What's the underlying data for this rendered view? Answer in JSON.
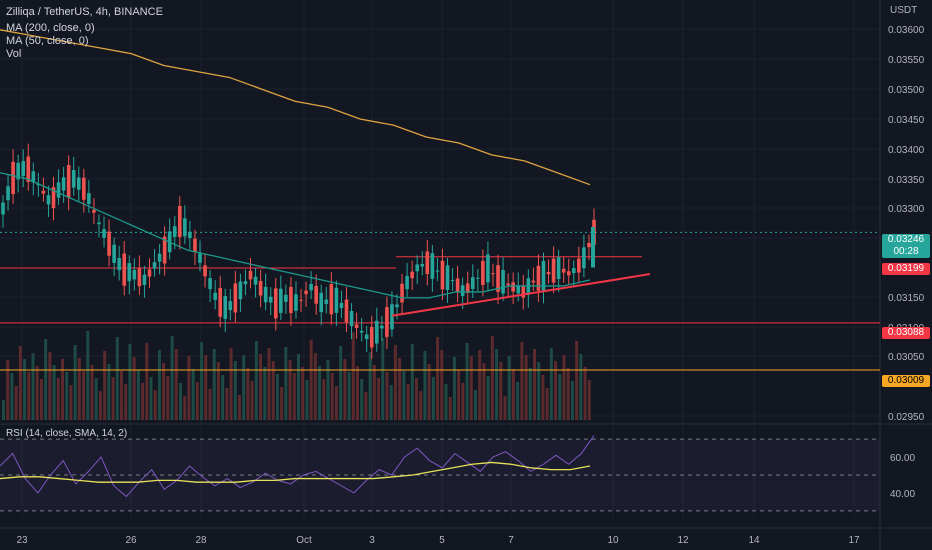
{
  "header": {
    "symbol_line": "Zilliqa / TetherUS, 4h, BINANCE",
    "ma200_label": "MA (200, close, 0)",
    "ma50_label": "MA (50, close, 0)",
    "vol_label": "Vol",
    "rsi_label": "RSI (14, close, SMA, 14, 2)",
    "currency": "USDT"
  },
  "badges": {
    "last_price": "0.03246",
    "countdown": "00:28",
    "resistance": "0.03199",
    "support": "0.03088",
    "low_line": "0.03009"
  },
  "colors": {
    "background": "#131722",
    "up": "#26a69a",
    "down": "#ef5350",
    "ma200": "#e0a341",
    "ma50": "#1b998b",
    "rsi": "#7e57c2",
    "rsi_ma": "#e8e25a",
    "resistance": "#f23645",
    "low_line": "#f5a623"
  },
  "chart_data": {
    "type": "candlestick",
    "symbol": "Zilliqa / TetherUS",
    "timeframe": "4h",
    "exchange": "BINANCE",
    "x_ticks": [
      "23",
      "26",
      "28",
      "Oct",
      "3",
      "5",
      "7",
      "10",
      "12",
      "14",
      "17"
    ],
    "y_ticks": [
      "0.03600",
      "0.03550",
      "0.03500",
      "0.03450",
      "0.03400",
      "0.03350",
      "0.03300",
      "0.03250",
      "0.03150",
      "0.03100",
      "0.03050",
      "0.02950"
    ],
    "ylim": [
      0.02925,
      0.0363
    ],
    "price_series": [
      0.0328,
      0.0334,
      0.0335,
      0.0332,
      0.0329,
      0.0332,
      0.0333,
      0.0331,
      0.0326,
      0.0322,
      0.0318,
      0.0317,
      0.0316,
      0.0319,
      0.0322,
      0.0326,
      0.0323,
      0.0318,
      0.0313,
      0.0311,
      0.0314,
      0.0317,
      0.0314,
      0.0312,
      0.0313,
      0.0312,
      0.0315,
      0.0312,
      0.0313,
      0.0311,
      0.0308,
      0.0306,
      0.0308,
      0.031,
      0.0315,
      0.0318,
      0.0319,
      0.0317,
      0.0316,
      0.0314,
      0.0316,
      0.0318,
      0.0316,
      0.0315,
      0.0314,
      0.0316,
      0.0317,
      0.0318,
      0.0317,
      0.0319,
      0.0324
    ],
    "ma200": [
      0.0358,
      0.0357,
      0.0356,
      0.0355,
      0.0354,
      0.0352,
      0.0351,
      0.035,
      0.0348,
      0.0346,
      0.0345,
      0.0343,
      0.0342,
      0.034,
      0.0339,
      0.0337,
      0.0336,
      0.0334,
      0.0332
    ],
    "ma50": [
      0.0334,
      0.0333,
      0.0331,
      0.0329,
      0.0327,
      0.0325,
      0.0323,
      0.0321,
      0.032,
      0.0319,
      0.0318,
      0.0317,
      0.0316,
      0.0315,
      0.0314,
      0.0313,
      0.0313,
      0.0314,
      0.0314,
      0.0315,
      0.0315,
      0.0315,
      0.0316
    ],
    "lines": [
      {
        "label": "0.03199",
        "value": 0.03199
      },
      {
        "label": "0.03088",
        "value": 0.03088
      },
      {
        "label": "0.03009",
        "value": 0.03009
      }
    ],
    "trendline": {
      "from": 0.031,
      "to": 0.0317
    },
    "rsi": {
      "y_ticks": [
        "60.00",
        "40.00"
      ],
      "ylim": [
        26,
        74
      ],
      "bands": [
        70,
        50,
        30
      ],
      "values": [
        55,
        62,
        48,
        40,
        50,
        58,
        45,
        52,
        60,
        44,
        38,
        46,
        53,
        42,
        47,
        55,
        49,
        44,
        48,
        43,
        46,
        51,
        47,
        45,
        50,
        52,
        48,
        44,
        40,
        47,
        53,
        50,
        60,
        65,
        58,
        54,
        62,
        57,
        52,
        60,
        63,
        58,
        52,
        56,
        61,
        56,
        62,
        72
      ],
      "ma": [
        48,
        49,
        49,
        48,
        47,
        46,
        46,
        46,
        47,
        47,
        46,
        46,
        46,
        47,
        47,
        48,
        48,
        48,
        48,
        48,
        49,
        50,
        52,
        54,
        56,
        57,
        56,
        54,
        53,
        53,
        55
      ]
    }
  }
}
